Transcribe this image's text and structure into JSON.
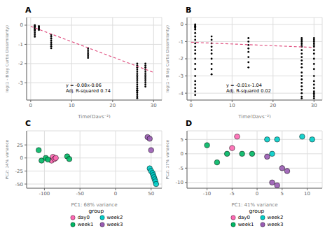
{
  "chart_data": [
    {
      "type": "scatter",
      "title": "A",
      "xlabel": "Time(Days⁻²)",
      "ylabel": "log(1 - Bray Curtis Dissimilarity)",
      "xlim": [
        -1,
        32
      ],
      "ylim": [
        -3.9,
        0.4
      ],
      "xticks": [
        0,
        10,
        20,
        30
      ],
      "yticks": [
        0,
        -1,
        -2,
        -3
      ],
      "grid": true,
      "annotation": "y = -0.08x-0.06\nAdj. R-squared 0.74",
      "series": [
        {
          "type": "scatter",
          "color": "black",
          "x": [
            1,
            1,
            1,
            1,
            1,
            1,
            1,
            1,
            1,
            1,
            2,
            2,
            2,
            2,
            2,
            5,
            5,
            5,
            5,
            5,
            5,
            5,
            5,
            14,
            14,
            14,
            14,
            14,
            14,
            26,
            26,
            26,
            26,
            26,
            26,
            26,
            26,
            26,
            26,
            26,
            26,
            26,
            26,
            26,
            26,
            26,
            26,
            26,
            26,
            26,
            28,
            28,
            28,
            28,
            28,
            28,
            28,
            28,
            28,
            28,
            28,
            28,
            28
          ],
          "y": [
            0,
            -0.05,
            -0.1,
            -0.15,
            -0.2,
            -0.25,
            -0.3,
            -0.4,
            -0.5,
            -0.6,
            -0.05,
            -0.1,
            -0.15,
            -0.2,
            -0.25,
            -0.5,
            -0.6,
            -0.7,
            -0.8,
            -0.9,
            -1.0,
            -1.1,
            -1.2,
            -1.2,
            -1.3,
            -1.4,
            -1.5,
            -1.6,
            -1.7,
            -2.0,
            -2.1,
            -2.2,
            -2.3,
            -2.4,
            -2.5,
            -2.6,
            -2.7,
            -2.8,
            -2.9,
            -3.0,
            -3.1,
            -3.2,
            -3.3,
            -3.4,
            -3.5,
            -3.6,
            -3.7,
            -3.8,
            -3.5,
            -3.4,
            -2.0,
            -2.1,
            -2.2,
            -2.3,
            -2.4,
            -2.5,
            -2.6,
            -2.7,
            -2.8,
            -2.9,
            -3.0,
            -3.1,
            -3.2
          ]
        },
        {
          "type": "line",
          "color": "#e05080",
          "line_style": "dashed",
          "x": [
            0,
            30
          ],
          "y": [
            -0.06,
            -2.46
          ]
        }
      ]
    },
    {
      "type": "scatter",
      "title": "B",
      "xlabel": "Time(Days⁻²)",
      "ylabel": "log(1 - Bray Curtis Dissimilarity)",
      "xlim": [
        -1,
        32
      ],
      "ylim": [
        -4.4,
        0.4
      ],
      "xticks": [
        0,
        10,
        20,
        30
      ],
      "yticks": [
        0,
        -1,
        -2,
        -3,
        -4
      ],
      "grid": true,
      "annotation": "y = -0.01x-1.04\nAdj. R-squared 0.02",
      "series": [
        {
          "type": "scatter",
          "color": "black",
          "x": [
            1,
            1,
            1,
            1,
            1,
            1,
            1,
            1,
            1,
            1,
            1,
            1,
            1,
            1,
            1,
            1,
            1,
            1,
            1,
            1,
            1,
            1,
            5,
            5,
            5,
            5,
            5,
            5,
            5,
            5,
            5,
            5,
            14,
            14,
            14,
            14,
            14,
            14,
            14,
            14,
            27,
            27,
            27,
            27,
            27,
            27,
            27,
            27,
            27,
            27,
            27,
            27,
            27,
            27,
            27,
            27,
            27,
            27,
            27,
            27,
            27,
            30,
            30,
            30,
            30,
            30,
            30,
            30,
            30,
            30,
            30,
            30,
            30,
            30,
            30,
            30,
            30,
            30,
            30,
            30,
            30
          ],
          "y": [
            0,
            -0.05,
            -0.1,
            -0.15,
            -0.2,
            -0.3,
            -0.5,
            -0.7,
            -0.9,
            -1.1,
            -1.3,
            -1.5,
            -1.7,
            -2.0,
            -2.3,
            -2.6,
            -3.0,
            -3.3,
            -3.5,
            -3.7,
            -3.9,
            -4.1,
            -0.7,
            -0.9,
            -1.1,
            -1.3,
            -1.5,
            -1.7,
            -2.0,
            -2.3,
            -2.6,
            -2.9,
            -0.8,
            -1.0,
            -1.2,
            -1.4,
            -1.6,
            -1.9,
            -2.2,
            -2.5,
            -0.8,
            -0.9,
            -1.0,
            -1.1,
            -1.2,
            -1.3,
            -1.5,
            -1.7,
            -1.9,
            -2.1,
            -2.3,
            -2.5,
            -2.8,
            -3.0,
            -3.2,
            -3.4,
            -3.6,
            -3.8,
            -4.0,
            -4.2,
            -4.3,
            -0.8,
            -0.9,
            -1.0,
            -1.1,
            -1.2,
            -1.3,
            -1.5,
            -1.7,
            -2.0,
            -2.3,
            -2.6,
            -3.0,
            -3.3,
            -3.5,
            -3.7,
            -3.9,
            -4.0,
            -4.1,
            -4.2,
            -4.3
          ]
        },
        {
          "type": "line",
          "color": "#e05080",
          "line_style": "dashed",
          "x": [
            0,
            30
          ],
          "y": [
            -1.04,
            -1.34
          ]
        }
      ]
    },
    {
      "type": "scatter",
      "title": "C",
      "xlabel": "PC1: 68% variance",
      "ylabel": "PC2: 14% variance",
      "xlim": [
        -125,
        65
      ],
      "ylim": [
        -58,
        52
      ],
      "xticks": [
        -100,
        -50,
        0,
        50
      ],
      "yticks": [
        -50,
        -25,
        0,
        25
      ],
      "grid": true,
      "legend": "bottom",
      "legend_title": "group",
      "series": [
        {
          "name": "day0",
          "color": "#ff69b4",
          "x": [
            -90,
            -88,
            -86,
            -84
          ],
          "y": [
            -5,
            2,
            -2,
            0
          ]
        },
        {
          "name": "week1",
          "color": "#00b865",
          "x": [
            -108,
            -104,
            -98,
            -95,
            -68,
            -65
          ],
          "y": [
            15,
            -5,
            0,
            -3,
            3,
            -2
          ]
        },
        {
          "name": "week2",
          "color": "#00cec9",
          "x": [
            48,
            50,
            52,
            53,
            54,
            55,
            56,
            57
          ],
          "y": [
            -20,
            -25,
            -29,
            -33,
            -37,
            -41,
            -45,
            -50
          ]
        },
        {
          "name": "week3",
          "color": "#9a5cb4",
          "x": [
            45,
            48,
            50
          ],
          "y": [
            40,
            37,
            15
          ]
        }
      ]
    },
    {
      "type": "scatter",
      "title": "D",
      "xlabel": "PC1: 41% variance",
      "ylabel": "PC2: 17% variance",
      "xlim": [
        -14,
        13
      ],
      "ylim": [
        -12,
        8
      ],
      "xticks": [
        -10,
        -5,
        0,
        5,
        10
      ],
      "yticks": [
        -10,
        -5,
        0,
        5
      ],
      "grid": true,
      "legend": "bottom",
      "legend_title": "group",
      "series": [
        {
          "name": "day0",
          "color": "#ff69b4",
          "x": [
            -5,
            -4
          ],
          "y": [
            2,
            6
          ]
        },
        {
          "name": "week1",
          "color": "#00b865",
          "x": [
            -10,
            -8,
            -6,
            -3,
            -1
          ],
          "y": [
            3,
            -3,
            0,
            0,
            0
          ]
        },
        {
          "name": "week2",
          "color": "#00cec9",
          "x": [
            2,
            4,
            9,
            11,
            3
          ],
          "y": [
            5,
            5,
            6,
            5,
            0
          ]
        },
        {
          "name": "week3",
          "color": "#9a5cb4",
          "x": [
            2,
            5,
            6,
            3,
            4
          ],
          "y": [
            -1,
            -5,
            -6,
            -10,
            -11
          ]
        }
      ]
    }
  ]
}
